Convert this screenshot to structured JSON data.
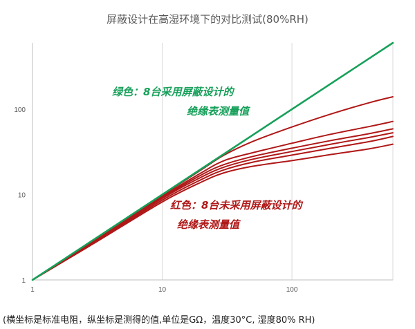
{
  "chart_data": {
    "type": "line",
    "title": "屏蔽设计在高湿环境下的对比测试(80%RH)",
    "x_scale": "log",
    "y_scale": "log",
    "xlim": [
      1,
      600
    ],
    "ylim": [
      1,
      600
    ],
    "x_ticks": [
      "1",
      "10",
      "100"
    ],
    "y_ticks": [
      "1",
      "10",
      "100"
    ],
    "grid": "vertical",
    "colors": {
      "green": "#17a05a",
      "red": "#b01818"
    },
    "series": [
      {
        "group": "green",
        "x": [
          1,
          600
        ],
        "y": [
          1,
          600
        ]
      },
      {
        "group": "red",
        "x": [
          1,
          3,
          10,
          20,
          30,
          50,
          100,
          200,
          400,
          600
        ],
        "y": [
          1,
          2.9,
          9.8,
          19.5,
          29,
          42,
          62,
          88,
          120,
          140
        ]
      },
      {
        "group": "red",
        "x": [
          1,
          3,
          10,
          20,
          30,
          50,
          100,
          200,
          400,
          600
        ],
        "y": [
          1,
          2.9,
          9.5,
          18,
          25,
          31,
          40,
          51,
          63,
          72
        ]
      },
      {
        "group": "red",
        "x": [
          1,
          3,
          10,
          20,
          30,
          50,
          100,
          200,
          400,
          600
        ],
        "y": [
          1,
          2.85,
          9.2,
          17,
          22.5,
          28,
          35,
          43,
          52,
          59
        ]
      },
      {
        "group": "red",
        "x": [
          1,
          3,
          10,
          20,
          30,
          50,
          100,
          200,
          400,
          600
        ],
        "y": [
          1,
          2.8,
          9,
          16,
          21,
          26,
          32,
          39,
          47,
          53
        ]
      },
      {
        "group": "red",
        "x": [
          1,
          3,
          10,
          20,
          30,
          50,
          100,
          200,
          400,
          600
        ],
        "y": [
          1,
          2.75,
          8.6,
          15,
          19.5,
          24,
          29,
          35,
          42,
          48
        ]
      },
      {
        "group": "red",
        "x": [
          1,
          3,
          10,
          20,
          30,
          50,
          100,
          200,
          400,
          600
        ],
        "y": [
          1,
          2.7,
          8.2,
          14,
          18,
          21.5,
          25,
          29.5,
          34.5,
          39
        ]
      }
    ],
    "annotations": [
      {
        "lines": [
          "绿色：8台采用屏蔽设计的",
          "绝缘表测量值"
        ],
        "color": "green"
      },
      {
        "lines": [
          "红色：8台未采用屏蔽设计的",
          "绝缘表测量值"
        ],
        "color": "red"
      }
    ]
  },
  "caption": "(横坐标是标准电阻，纵坐标是测得的值,单位是GΩ，温度30°C, 湿度80% RH)"
}
